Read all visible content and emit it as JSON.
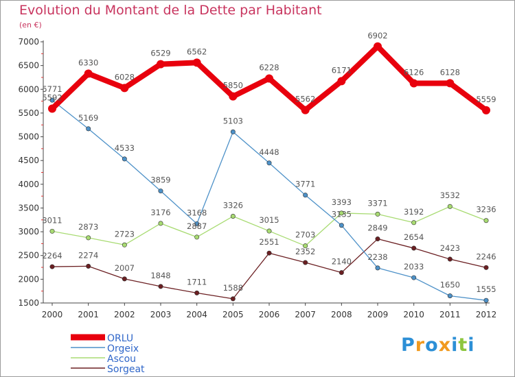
{
  "title": "Evolution du Montant de la Dette par Habitant",
  "subtitle": "(en €)",
  "logo": {
    "letters": [
      "P",
      "r",
      "o",
      "x",
      "i",
      "t",
      "i"
    ],
    "colors": [
      "#2c8fd6",
      "#f19a1f",
      "#2c8fd6",
      "#f19a1f",
      "#2c8fd6",
      "#8dc63f",
      "#2c8fd6"
    ]
  },
  "chart_data": {
    "type": "line",
    "x": [
      2000,
      2001,
      2002,
      2003,
      2004,
      2005,
      2006,
      2007,
      2008,
      2009,
      2010,
      2011,
      2012
    ],
    "ylim": [
      1500,
      7000
    ],
    "yticks": [
      1500,
      2000,
      2500,
      3000,
      3500,
      4000,
      4500,
      5000,
      5500,
      6000,
      6500,
      7000
    ],
    "grid": false,
    "legend_position": "bottom-left",
    "series": [
      {
        "name": "ORLU",
        "color": "#e8000d",
        "values": [
          5592,
          6330,
          6028,
          6529,
          6562,
          5850,
          6228,
          5562,
          6171,
          6902,
          6126,
          6128,
          5559
        ]
      },
      {
        "name": "Orgeix",
        "color": "#4d91c8",
        "values": [
          5771,
          5169,
          4533,
          3859,
          3168,
          5103,
          4448,
          3771,
          3135,
          2238,
          2033,
          1650,
          1555
        ]
      },
      {
        "name": "Ascou",
        "color": "#a8db72",
        "values": [
          3011,
          2873,
          2723,
          3176,
          2887,
          3326,
          3015,
          2703,
          3393,
          3371,
          3192,
          3532,
          3236
        ]
      },
      {
        "name": "Sorgeat",
        "color": "#6b1f22",
        "values": [
          2264,
          2274,
          2007,
          1848,
          1711,
          1588,
          2551,
          2352,
          2140,
          2849,
          2654,
          2423,
          2246
        ]
      }
    ]
  }
}
